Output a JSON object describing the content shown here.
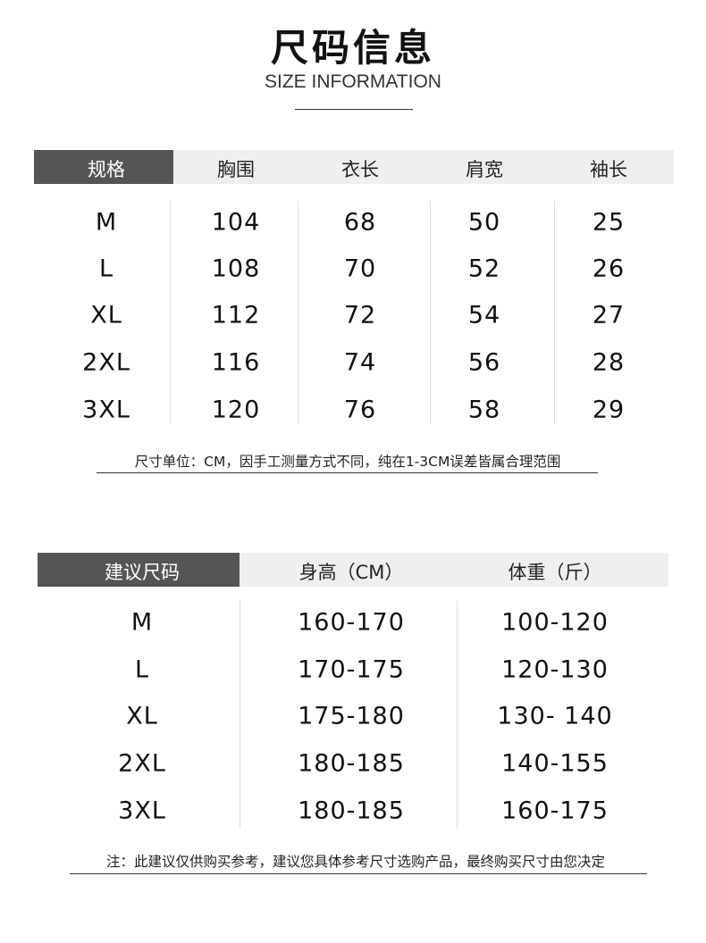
{
  "header": {
    "title": "尺码信息",
    "subtitle": "SIZE INFORMATION"
  },
  "size_table": {
    "columns": [
      "规格",
      "胸围",
      "衣长",
      "肩宽",
      "袖长"
    ],
    "rows": [
      [
        "M",
        "104",
        "68",
        "50",
        "25"
      ],
      [
        "L",
        "108",
        "70",
        "52",
        "26"
      ],
      [
        "XL",
        "112",
        "72",
        "54",
        "27"
      ],
      [
        "2XL",
        "116",
        "74",
        "56",
        "28"
      ],
      [
        "3XL",
        "120",
        "76",
        "58",
        "29"
      ]
    ],
    "note": "尺寸单位：CM，因手工测量方式不同，纯在1-3CM误差皆属合理范围"
  },
  "recommend_table": {
    "columns": [
      "建议尺码",
      "身高（CM）",
      "体重（斤）"
    ],
    "rows": [
      [
        "M",
        "160-170",
        "100-120"
      ],
      [
        "L",
        "170-175",
        "120-130"
      ],
      [
        "XL",
        "175-180",
        "130- 140"
      ],
      [
        "2XL",
        "180-185",
        "140-155"
      ],
      [
        "3XL",
        "180-185",
        "160-175"
      ]
    ],
    "note": "注：此建议仅供购买参考，建议您具体参考尺寸选购产品，最终购买尺寸由您决定"
  },
  "colors": {
    "header_dark": "#555555",
    "header_light": "#efefef"
  }
}
